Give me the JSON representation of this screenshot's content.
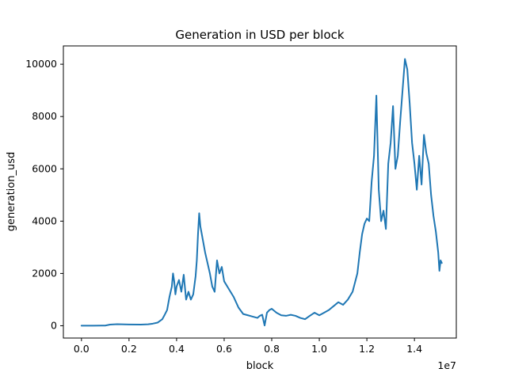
{
  "chart_data": {
    "type": "line",
    "title": "Generation in USD per block",
    "xlabel": "block",
    "ylabel": "generation_usd",
    "x_offset_label": "1e7",
    "xlim": [
      -0.076,
      1.576
    ],
    "ylim": [
      -470,
      10700
    ],
    "x_ticks": [
      {
        "value": 0.0,
        "label": "0.0"
      },
      {
        "value": 0.2,
        "label": "0.2"
      },
      {
        "value": 0.4,
        "label": "0.4"
      },
      {
        "value": 0.6,
        "label": "0.6"
      },
      {
        "value": 0.8,
        "label": "0.8"
      },
      {
        "value": 1.0,
        "label": "1.0"
      },
      {
        "value": 1.2,
        "label": "1.2"
      },
      {
        "value": 1.4,
        "label": "1.4"
      }
    ],
    "y_ticks": [
      {
        "value": 0,
        "label": "0"
      },
      {
        "value": 2000,
        "label": "2000"
      },
      {
        "value": 4000,
        "label": "4000"
      },
      {
        "value": 6000,
        "label": "6000"
      },
      {
        "value": 8000,
        "label": "8000"
      },
      {
        "value": 10000,
        "label": "10000"
      }
    ],
    "grid": false,
    "series": [
      {
        "color": "#1f77b4",
        "points": [
          [
            0.0,
            2
          ],
          [
            0.05,
            4
          ],
          [
            0.1,
            8
          ],
          [
            0.12,
            45
          ],
          [
            0.15,
            60
          ],
          [
            0.2,
            50
          ],
          [
            0.25,
            45
          ],
          [
            0.28,
            55
          ],
          [
            0.3,
            80
          ],
          [
            0.32,
            120
          ],
          [
            0.34,
            250
          ],
          [
            0.35,
            420
          ],
          [
            0.36,
            600
          ],
          [
            0.37,
            1100
          ],
          [
            0.38,
            1500
          ],
          [
            0.385,
            2000
          ],
          [
            0.39,
            1700
          ],
          [
            0.395,
            1200
          ],
          [
            0.4,
            1500
          ],
          [
            0.41,
            1750
          ],
          [
            0.42,
            1300
          ],
          [
            0.43,
            1950
          ],
          [
            0.44,
            1000
          ],
          [
            0.45,
            1300
          ],
          [
            0.46,
            1000
          ],
          [
            0.47,
            1200
          ],
          [
            0.48,
            1900
          ],
          [
            0.485,
            2500
          ],
          [
            0.49,
            3500
          ],
          [
            0.495,
            4300
          ],
          [
            0.5,
            3800
          ],
          [
            0.51,
            3300
          ],
          [
            0.52,
            2800
          ],
          [
            0.53,
            2400
          ],
          [
            0.54,
            2000
          ],
          [
            0.55,
            1500
          ],
          [
            0.56,
            1300
          ],
          [
            0.57,
            2500
          ],
          [
            0.58,
            2000
          ],
          [
            0.59,
            2250
          ],
          [
            0.6,
            1700
          ],
          [
            0.62,
            1400
          ],
          [
            0.64,
            1100
          ],
          [
            0.66,
            700
          ],
          [
            0.68,
            450
          ],
          [
            0.7,
            400
          ],
          [
            0.72,
            350
          ],
          [
            0.74,
            300
          ],
          [
            0.75,
            380
          ],
          [
            0.76,
            420
          ],
          [
            0.77,
            10
          ],
          [
            0.78,
            500
          ],
          [
            0.79,
            600
          ],
          [
            0.8,
            650
          ],
          [
            0.82,
            500
          ],
          [
            0.84,
            400
          ],
          [
            0.86,
            380
          ],
          [
            0.88,
            420
          ],
          [
            0.9,
            380
          ],
          [
            0.92,
            300
          ],
          [
            0.94,
            250
          ],
          [
            0.96,
            380
          ],
          [
            0.98,
            500
          ],
          [
            1.0,
            400
          ],
          [
            1.02,
            500
          ],
          [
            1.04,
            600
          ],
          [
            1.06,
            750
          ],
          [
            1.08,
            900
          ],
          [
            1.1,
            800
          ],
          [
            1.12,
            1000
          ],
          [
            1.14,
            1300
          ],
          [
            1.16,
            2000
          ],
          [
            1.17,
            2800
          ],
          [
            1.18,
            3500
          ],
          [
            1.19,
            3900
          ],
          [
            1.2,
            4100
          ],
          [
            1.21,
            4000
          ],
          [
            1.22,
            5500
          ],
          [
            1.23,
            6500
          ],
          [
            1.24,
            8800
          ],
          [
            1.25,
            5200
          ],
          [
            1.26,
            4000
          ],
          [
            1.27,
            4400
          ],
          [
            1.28,
            3700
          ],
          [
            1.29,
            6200
          ],
          [
            1.3,
            7000
          ],
          [
            1.31,
            8400
          ],
          [
            1.32,
            6000
          ],
          [
            1.33,
            6500
          ],
          [
            1.34,
            7800
          ],
          [
            1.35,
            9000
          ],
          [
            1.36,
            10200
          ],
          [
            1.37,
            9800
          ],
          [
            1.38,
            8500
          ],
          [
            1.39,
            7000
          ],
          [
            1.4,
            6200
          ],
          [
            1.41,
            5200
          ],
          [
            1.42,
            6500
          ],
          [
            1.43,
            5400
          ],
          [
            1.44,
            7300
          ],
          [
            1.45,
            6600
          ],
          [
            1.46,
            6200
          ],
          [
            1.47,
            5000
          ],
          [
            1.48,
            4200
          ],
          [
            1.49,
            3600
          ],
          [
            1.5,
            2800
          ],
          [
            1.505,
            2100
          ],
          [
            1.51,
            2500
          ],
          [
            1.515,
            2400
          ]
        ]
      }
    ]
  }
}
